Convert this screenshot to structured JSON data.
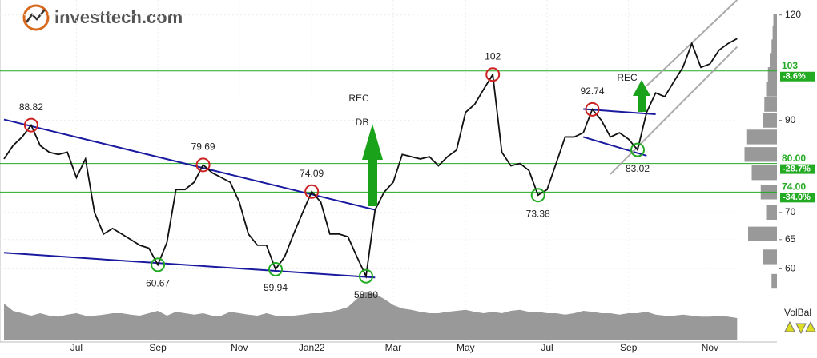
{
  "logo": "investtech.com",
  "chart_data": {
    "type": "line",
    "log": true,
    "grid": true,
    "categories": [
      null,
      null,
      null,
      null,
      null,
      null,
      null,
      null,
      "Jul",
      null,
      null,
      null,
      null,
      null,
      null,
      null,
      null,
      "Sep",
      null,
      null,
      null,
      null,
      null,
      null,
      null,
      null,
      "Nov",
      null,
      null,
      null,
      null,
      null,
      null,
      null,
      "Jan22",
      null,
      null,
      null,
      null,
      null,
      null,
      null,
      null,
      "Mar",
      null,
      null,
      null,
      null,
      null,
      null,
      null,
      "May",
      null,
      null,
      null,
      null,
      null,
      null,
      null,
      null,
      "Jul",
      null,
      null,
      null,
      null,
      null,
      null,
      null,
      null,
      "Sep",
      null,
      null,
      null,
      null,
      null,
      null,
      null,
      null,
      "Nov",
      null,
      null,
      null
    ],
    "series": [
      {
        "color": "#111111",
        "values": [
          81,
          84,
          86,
          88.82,
          84,
          82.5,
          82,
          82.5,
          77,
          81,
          70,
          66,
          67,
          66,
          65,
          64,
          63.5,
          60.67,
          64.5,
          74.5,
          74.5,
          76,
          79.69,
          78,
          77,
          76,
          72,
          66,
          64,
          64,
          59.94,
          62,
          66,
          70,
          74.09,
          72,
          66,
          66,
          65.5,
          62,
          58.8,
          70.5,
          74,
          76,
          82,
          81.5,
          81,
          81.5,
          79.5,
          81.5,
          83,
          92,
          94,
          98,
          102,
          82.5,
          79.5,
          80,
          78.5,
          73.38,
          74.5,
          80,
          86,
          86,
          87,
          92.74,
          90,
          86,
          87,
          85.5,
          83.02,
          92,
          97,
          96,
          100,
          104,
          111,
          104,
          105,
          109,
          111,
          112.5
        ]
      }
    ],
    "ylim": [
      57,
      125
    ],
    "yticks": [
      60,
      65,
      70,
      90,
      120
    ],
    "levels": [
      {
        "value": 103,
        "label": "103",
        "change": "-8.6%"
      },
      {
        "value": 80,
        "label": "80.00",
        "change": "-28.7%"
      },
      {
        "value": 74,
        "label": "74.00",
        "change": "-34.0%"
      }
    ],
    "level_color": "#22aa22",
    "annotations": [
      {
        "value": 88.82,
        "color": "#cc2222"
      },
      {
        "value": 79.69,
        "color": "#cc2222"
      },
      {
        "value": 74.09,
        "color": "#cc2222"
      },
      {
        "value": 102,
        "color": "#cc2222"
      },
      {
        "value": 92.74,
        "color": "#cc2222"
      },
      {
        "value": 60.67,
        "color": "#22aa22"
      },
      {
        "value": 59.94,
        "color": "#22aa22"
      },
      {
        "value": {
          "value": 58.8,
          "label": "58.80"
        },
        "color": "#22aa22"
      },
      {
        "value": 73.38,
        "color": "#22aa22"
      },
      {
        "value": 83.02,
        "color": "#22aa22"
      }
    ],
    "trend_lines": [
      {
        "color": "#1a1aa0",
        "from": [
          0,
          90.2
        ],
        "to": [
          41,
          70.5
        ]
      },
      {
        "color": "#1a1aa0",
        "from": [
          0,
          62.7
        ],
        "to": [
          41,
          58.6
        ]
      },
      {
        "color": "#1a1aa0",
        "from": [
          64,
          92.8
        ],
        "to": [
          72,
          91.5
        ]
      },
      {
        "color": "#1a1aa0",
        "from": [
          64,
          86
        ],
        "to": [
          71,
          81.7
        ]
      },
      {
        "color": "#aaaaaa",
        "from": [
          71,
          98.9
        ],
        "to": [
          81,
          125
        ]
      },
      {
        "color": "#aaaaaa",
        "from": [
          67,
          77.7
        ],
        "to": [
          81,
          110
        ]
      }
    ],
    "signals": [
      "REC",
      "DB",
      "REC"
    ],
    "volume": {
      "color": "#999999",
      "ylim": [
        0,
        100
      ],
      "values": [
        75,
        60,
        55,
        50,
        55,
        50,
        48,
        52,
        55,
        50,
        50,
        52,
        55,
        55,
        52,
        50,
        55,
        60,
        50,
        58,
        55,
        52,
        55,
        50,
        50,
        58,
        55,
        52,
        50,
        55,
        50,
        50,
        50,
        52,
        55,
        55,
        58,
        62,
        68,
        85,
        100,
        95,
        85,
        72,
        65,
        62,
        58,
        55,
        55,
        58,
        60,
        62,
        58,
        55,
        58,
        55,
        60,
        62,
        58,
        58,
        55,
        55,
        52,
        55,
        60,
        58,
        55,
        55,
        52,
        55,
        55,
        58,
        52,
        50,
        50,
        52,
        50,
        48,
        48,
        50,
        48,
        45
      ]
    },
    "volume_profile": {
      "color": "#999999",
      "prices": [
        118,
        114,
        110,
        106,
        102,
        98,
        94,
        90,
        86,
        82,
        78,
        74,
        70,
        66,
        62,
        58
      ],
      "values": [
        10,
        12,
        15,
        20,
        25,
        30,
        35,
        40,
        85,
        90,
        70,
        45,
        30,
        80,
        40,
        15
      ]
    },
    "indicator": "VolBal"
  }
}
